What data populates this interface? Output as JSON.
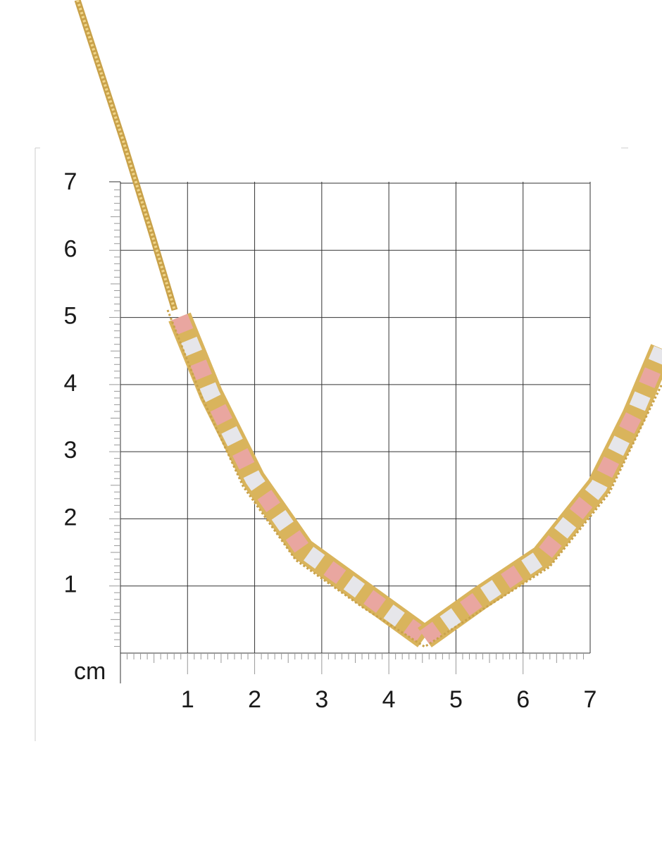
{
  "ruler": {
    "unit": "cm",
    "y_labels": [
      "1",
      "2",
      "3",
      "4",
      "5",
      "6",
      "7"
    ],
    "x_labels": [
      "1",
      "2",
      "3",
      "4",
      "5",
      "6",
      "7"
    ]
  }
}
